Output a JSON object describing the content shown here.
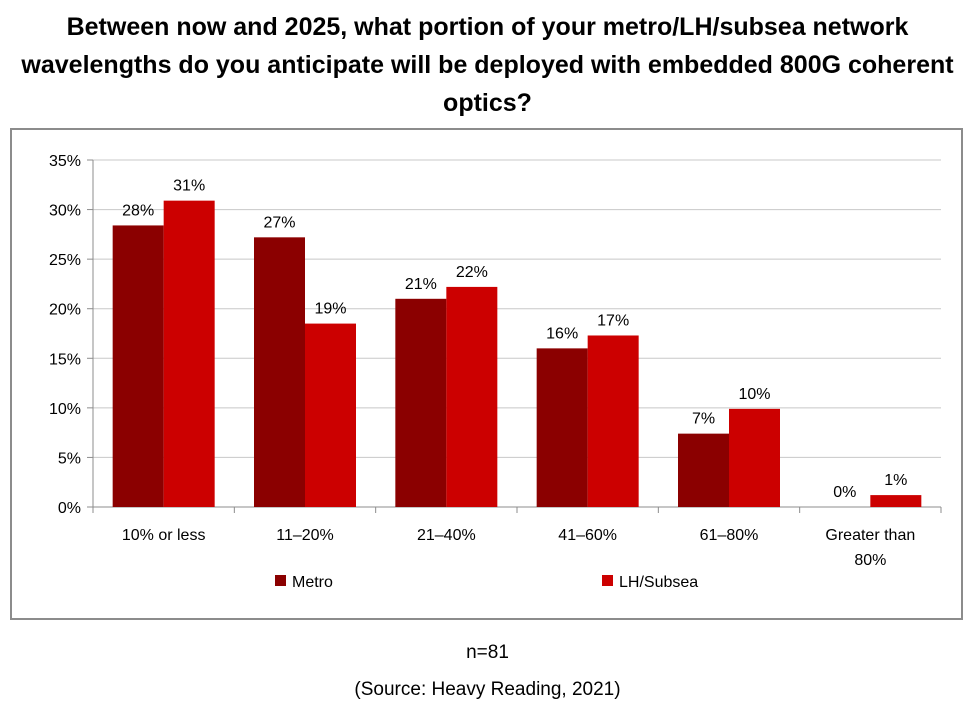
{
  "chart_data": {
    "type": "bar",
    "title": "Between now and 2025, what portion of your metro/LH/subsea network wavelengths do you anticipate will be deployed with embedded 800G coherent optics?",
    "categories": [
      [
        "10% or less"
      ],
      [
        "11–20%"
      ],
      [
        "21–40%"
      ],
      [
        "41–60%"
      ],
      [
        "61–80%"
      ],
      [
        "Greater than",
        "80%"
      ]
    ],
    "series": [
      {
        "name": "Metro",
        "color": "#8b0000",
        "values": [
          28.4,
          27.2,
          21.0,
          16.0,
          7.4,
          0.0
        ],
        "labels": [
          "28%",
          "27%",
          "21%",
          "16%",
          "7%",
          "0%"
        ]
      },
      {
        "name": "LH/Subsea",
        "color": "#cc0000",
        "values": [
          30.9,
          18.5,
          22.2,
          17.3,
          9.9,
          1.2
        ],
        "labels": [
          "31%",
          "19%",
          "22%",
          "17%",
          "10%",
          "1%"
        ]
      }
    ],
    "ylim": [
      0,
      35
    ],
    "yticks": [
      "0%",
      "5%",
      "10%",
      "15%",
      "20%",
      "25%",
      "30%",
      "35%"
    ],
    "grid": true,
    "legend_position": "bottom"
  },
  "footer": {
    "n": "n=81",
    "source": "(Source: Heavy Reading, 2021)"
  }
}
